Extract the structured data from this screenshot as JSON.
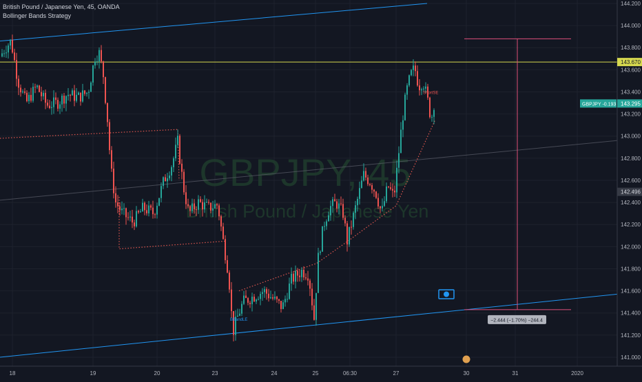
{
  "legend": {
    "symbol_title": "British Pound / Japanese Yen, 45, OANDA",
    "indicator": "Bollinger Bands Strategy"
  },
  "chart_data": {
    "type": "candlestick",
    "symbol": "GBPJPY",
    "interval": "45",
    "watermark_main": "GBPJPY, 45",
    "watermark_sub": "British Pound / Japanese Yen",
    "y_range": [
      140.95,
      144.2
    ],
    "y_ticks": [
      "144.200",
      "144.000",
      "143.800",
      "143.600",
      "143.400",
      "143.200",
      "143.000",
      "142.800",
      "142.600",
      "142.400",
      "142.200",
      "142.000",
      "141.800",
      "141.600",
      "141.400",
      "141.200",
      "141.000"
    ],
    "x_ticks": [
      "18",
      "19",
      "20",
      "23",
      "24",
      "25",
      "06:30",
      "27",
      "30",
      "31",
      "2020"
    ],
    "price_labels": [
      {
        "text": "143.670",
        "value": 143.67,
        "kind": "horizontal-line"
      },
      {
        "text": "GBPJPY -0.193",
        "value": 143.295,
        "kind": "symbol"
      },
      {
        "text": "143.295",
        "value": 143.295,
        "kind": "last-price"
      },
      {
        "text": "142.496",
        "value": 142.496,
        "kind": "trendline"
      }
    ],
    "horizontal_line": 143.67,
    "measure_label": "−2.444 (−1.70%) −244.4",
    "signal_labels": [
      "ShortSE",
      "BBandLE"
    ],
    "key_points": [
      {
        "label": "open",
        "value": 143.75
      },
      {
        "label": "high",
        "value": 143.88
      },
      {
        "label": "low",
        "value": 141.18
      },
      {
        "label": "last",
        "value": 143.295
      }
    ],
    "colors": {
      "up": "#26a69a",
      "down": "#ef5350",
      "horizontal_line": "#d7d94f",
      "channel": "#2196f3",
      "dotted": "#e1574f",
      "measure": "#e0507b",
      "background": "#131722"
    }
  }
}
